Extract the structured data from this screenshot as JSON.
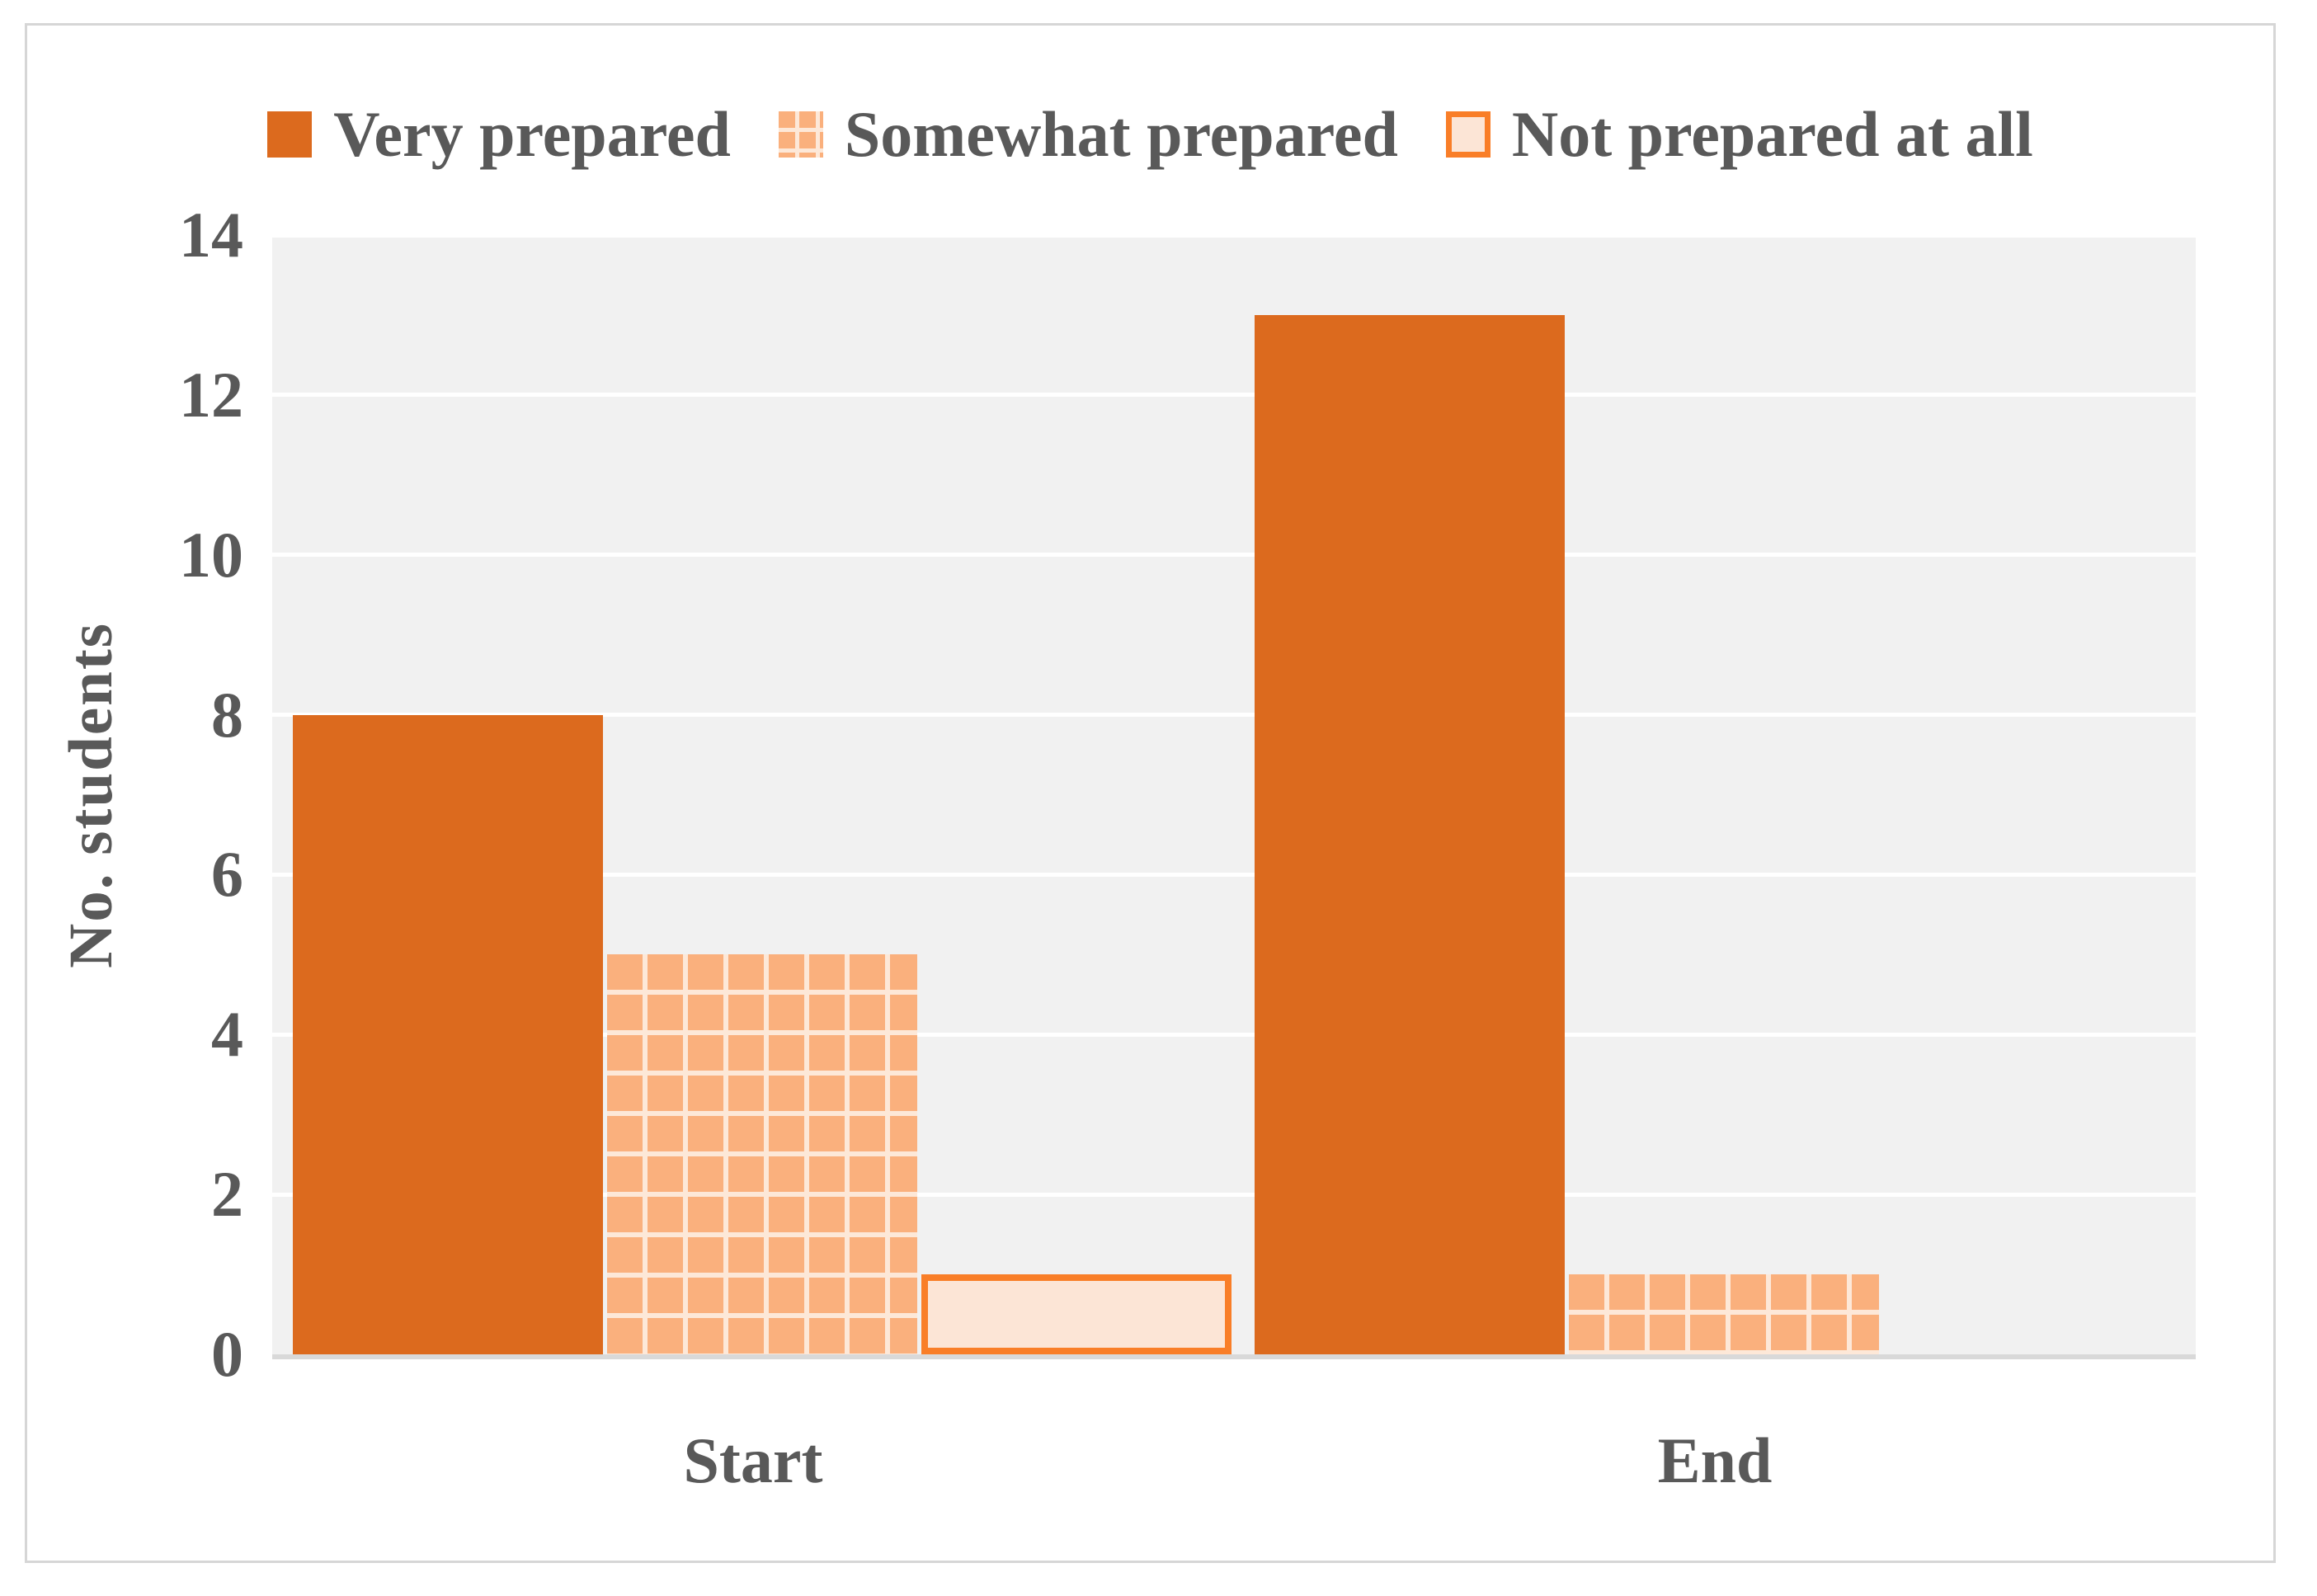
{
  "chart_data": {
    "type": "bar",
    "title": "",
    "categories": [
      "Start",
      "End"
    ],
    "series": [
      {
        "name": "Very prepared",
        "values": [
          8,
          13
        ],
        "fill": "solid",
        "color": "#DC6A1E"
      },
      {
        "name": "Somewhat prepared",
        "values": [
          5,
          1
        ],
        "fill": "checker",
        "color": "#FAB07D",
        "pattern_bg": "#FDE8D8"
      },
      {
        "name": "Not prepared at all",
        "values": [
          1,
          0
        ],
        "fill": "outline",
        "color": "#FCE5D6",
        "border_color": "#F97E28"
      }
    ],
    "xlabel": "",
    "ylabel": "No. students",
    "ylim": [
      0,
      14
    ],
    "yticks": [
      0,
      2,
      4,
      6,
      8,
      10,
      12,
      14
    ],
    "grid": "horizontal",
    "legend_position": "top"
  },
  "colors": {
    "chart_background": "#FFFFFF",
    "frame_border": "#D6D6D6",
    "plot_background": "#F1F1F1",
    "gridline": "#FFFFFF",
    "axis_line": "#D9D9D9",
    "text": "#595959"
  }
}
